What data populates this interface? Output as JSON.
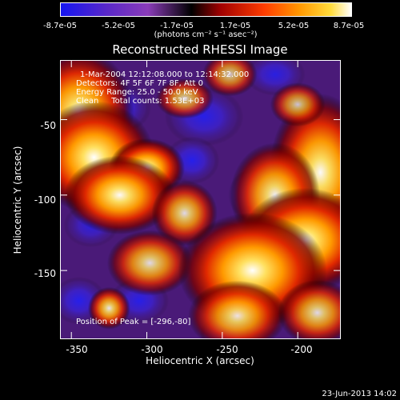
{
  "colorbar": {
    "ticks": [
      "-8.7e-05",
      "-5.2e-05",
      "-1.7e-05",
      "1.7e-05",
      "5.2e-05",
      "8.7e-05"
    ],
    "unit": "(photons cm⁻² s⁻¹ asec⁻²)",
    "colors": [
      "#1515f0",
      "#5a28c8",
      "#8a3cb8",
      "#000000",
      "#a00000",
      "#ff3c00",
      "#ff9600",
      "#ffdc3c",
      "#ffffff"
    ]
  },
  "info": {
    "line1": "1-Mar-2004 12:12:08.000 to 12:14:32.000",
    "line2": "Detectors: 4F 5F 6F 7F 8F, Att 0",
    "line3": "Energy Range: 25.0 - 50.0 keV",
    "line4": "Clean     Total counts: 1.53E+03",
    "peak": "Position of Peak = [-296,-80]"
  },
  "footer": "23-Jun-2013 14:02",
  "chart_data": {
    "type": "heatmap",
    "title": "Reconstructed RHESSI Image",
    "xlabel": "Heliocentric X (arcsec)",
    "ylabel": "Heliocentric Y (arcsec)",
    "xlim": [
      -357,
      -172
    ],
    "ylim": [
      -195,
      -11
    ],
    "xticks": [
      -350,
      -300,
      -250,
      -200
    ],
    "yticks": [
      -50,
      -100,
      -150
    ],
    "colorbar_range": [
      -8.7e-05,
      8.7e-05
    ],
    "peak": [
      -296,
      -80
    ],
    "sources": [
      {
        "x": -345,
        "y": -45,
        "sx": 14,
        "sy": 16,
        "a": 0.85
      },
      {
        "x": -335,
        "y": -75,
        "sx": 15,
        "sy": 14,
        "a": 0.9
      },
      {
        "x": -300,
        "y": -82,
        "sx": 9,
        "sy": 7,
        "a": 1.0
      },
      {
        "x": -318,
        "y": -100,
        "sx": 14,
        "sy": 10,
        "a": 0.85
      },
      {
        "x": -275,
        "y": -112,
        "sx": 10,
        "sy": 10,
        "a": 0.55
      },
      {
        "x": -298,
        "y": -145,
        "sx": 13,
        "sy": 10,
        "a": 0.55
      },
      {
        "x": -185,
        "y": -85,
        "sx": 13,
        "sy": 20,
        "a": 0.85
      },
      {
        "x": -215,
        "y": -100,
        "sx": 12,
        "sy": 14,
        "a": 0.75
      },
      {
        "x": -195,
        "y": -130,
        "sx": 16,
        "sy": 13,
        "a": 0.9
      },
      {
        "x": -230,
        "y": -150,
        "sx": 18,
        "sy": 14,
        "a": 0.95
      },
      {
        "x": -240,
        "y": -180,
        "sx": 14,
        "sy": 10,
        "a": 0.65
      },
      {
        "x": -187,
        "y": -178,
        "sx": 12,
        "sy": 10,
        "a": 0.55
      },
      {
        "x": -325,
        "y": -175,
        "sx": 6,
        "sy": 6,
        "a": 0.65
      },
      {
        "x": -275,
        "y": -36,
        "sx": 10,
        "sy": 7,
        "a": 0.4
      },
      {
        "x": -245,
        "y": -20,
        "sx": 10,
        "sy": 8,
        "a": 0.35
      },
      {
        "x": -200,
        "y": -40,
        "sx": 10,
        "sy": 8,
        "a": 0.35
      },
      {
        "x": -318,
        "y": -42,
        "sx": 10,
        "sy": 8,
        "a": -0.5
      },
      {
        "x": -262,
        "y": -48,
        "sx": 12,
        "sy": 9,
        "a": -0.55
      },
      {
        "x": -270,
        "y": -77,
        "sx": 8,
        "sy": 7,
        "a": -0.6
      },
      {
        "x": -228,
        "y": -100,
        "sx": 8,
        "sy": 8,
        "a": -0.6
      },
      {
        "x": -248,
        "y": -135,
        "sx": 10,
        "sy": 8,
        "a": -0.55
      },
      {
        "x": -337,
        "y": -120,
        "sx": 10,
        "sy": 8,
        "a": -0.35
      },
      {
        "x": -345,
        "y": -170,
        "sx": 8,
        "sy": 7,
        "a": -0.6
      },
      {
        "x": -305,
        "y": -170,
        "sx": 9,
        "sy": 7,
        "a": -0.55
      },
      {
        "x": -215,
        "y": -20,
        "sx": 10,
        "sy": 7,
        "a": -0.45
      },
      {
        "x": -248,
        "y": -192,
        "sx": 8,
        "sy": 6,
        "a": -0.5
      }
    ]
  }
}
